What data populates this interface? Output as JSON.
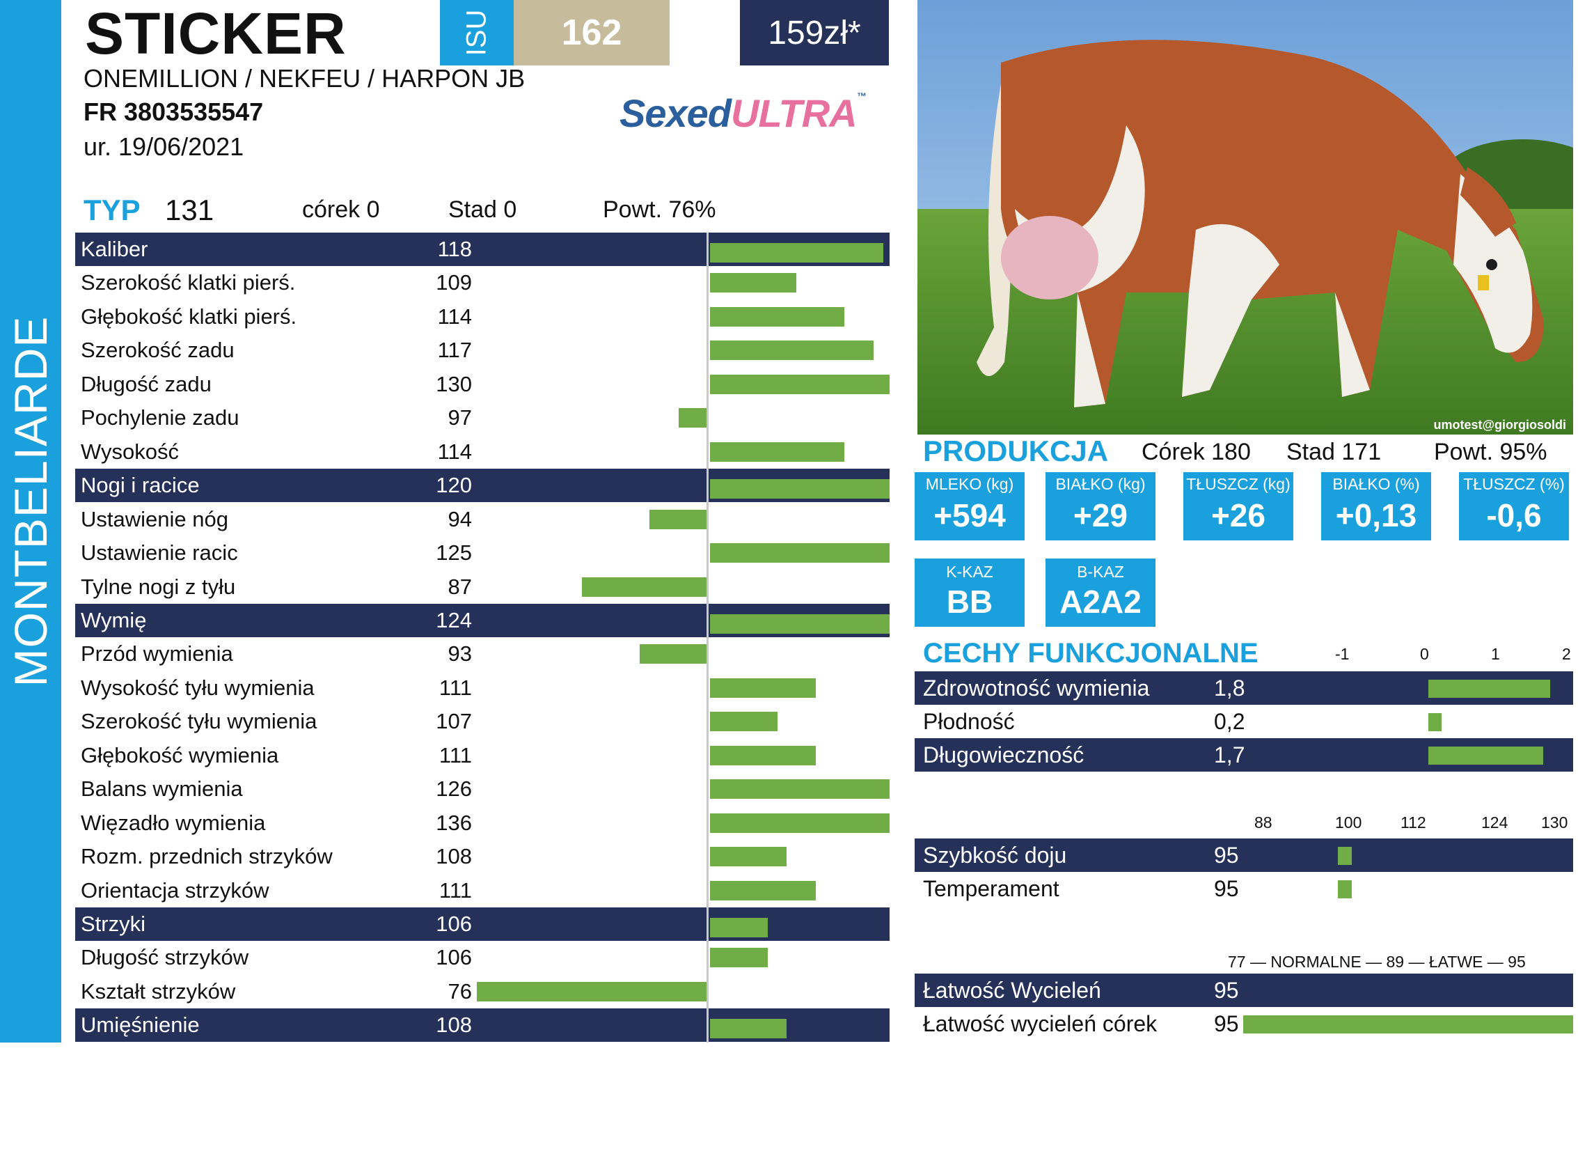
{
  "breed": "MONTBELIARDE",
  "header": {
    "name": "STICKER",
    "isu_label": "ISU",
    "isu_value": "162",
    "price": "159zł*",
    "pedigree": "ONEMILLION / NEKFEU / HARPON JB",
    "reg_number": "FR 3803535547",
    "birth_date": "ur. 19/06/2021",
    "brand_part1": "Sexed",
    "brand_part2": "ULTRA",
    "brand_tm": "™"
  },
  "type_summary": {
    "label": "TYP",
    "value": "131",
    "daughters": "córek 0",
    "herds": "Stad 0",
    "reliability": "Powt. 76%"
  },
  "type_traits": [
    {
      "label": "Kaliber",
      "value": 118,
      "group": true
    },
    {
      "label": "Szerokość klatki pierś.",
      "value": 109,
      "group": false
    },
    {
      "label": "Głębokość klatki pierś.",
      "value": 114,
      "group": false
    },
    {
      "label": "Szerokość zadu",
      "value": 117,
      "group": false
    },
    {
      "label": "Długość zadu",
      "value": 130,
      "group": false
    },
    {
      "label": "Pochylenie zadu",
      "value": 97,
      "group": false
    },
    {
      "label": "Wysokość",
      "value": 114,
      "group": false
    },
    {
      "label": "Nogi i racice",
      "value": 120,
      "group": true
    },
    {
      "label": "Ustawienie nóg",
      "value": 94,
      "group": false
    },
    {
      "label": "Ustawienie racic",
      "value": 125,
      "group": false
    },
    {
      "label": "Tylne nogi z tyłu",
      "value": 87,
      "group": false
    },
    {
      "label": "Wymię",
      "value": 124,
      "group": true
    },
    {
      "label": "Przód wymienia",
      "value": 93,
      "group": false
    },
    {
      "label": "Wysokość tyłu wymienia",
      "value": 111,
      "group": false
    },
    {
      "label": "Szerokość tyłu wymienia",
      "value": 107,
      "group": false
    },
    {
      "label": "Głębokość wymienia",
      "value": 111,
      "group": false
    },
    {
      "label": "Balans wymienia",
      "value": 126,
      "group": false
    },
    {
      "label": "Więzadło wymienia",
      "value": 136,
      "group": false
    },
    {
      "label": "Rozm. przednich strzyków",
      "value": 108,
      "group": false
    },
    {
      "label": "Orientacja strzyków",
      "value": 111,
      "group": false
    },
    {
      "label": "Strzyki",
      "value": 106,
      "group": true
    },
    {
      "label": "Długość strzyków",
      "value": 106,
      "group": false
    },
    {
      "label": "Kształt strzyków",
      "value": 76,
      "group": false
    },
    {
      "label": "Umięśnienie",
      "value": 108,
      "group": true
    }
  ],
  "photo": {
    "credit": "umotest@giorgiosoldi"
  },
  "production": {
    "title": "PRODUKCJA",
    "daughters": "Córek 180",
    "herds": "Stad 171",
    "reliability": "Powt. 95%",
    "values": [
      {
        "label": "MLEKO (kg)",
        "value": "+594"
      },
      {
        "label": "BIAŁKO (kg)",
        "value": "+29"
      },
      {
        "label": "TŁUSZCZ (kg)",
        "value": "+26"
      },
      {
        "label": "BIAŁKO (%)",
        "value": "+0,13"
      },
      {
        "label": "TŁUSZCZ (%)",
        "value": "-0,6"
      }
    ],
    "genes": [
      {
        "label": "K-KAZ",
        "value": "BB"
      },
      {
        "label": "B-KAZ",
        "value": "A2A2"
      }
    ]
  },
  "functional": {
    "title": "CECHY FUNKCJONALNE",
    "scale_labels": [
      "-1",
      "0",
      "1",
      "2"
    ],
    "traits": [
      {
        "label": "Zdrowotność wymienia",
        "value": "1,8",
        "num": 1.8,
        "group": true
      },
      {
        "label": "Płodność",
        "value": "0,2",
        "num": 0.2,
        "group": false
      },
      {
        "label": "Długowieczność",
        "value": "1,7",
        "num": 1.7,
        "group": true
      }
    ]
  },
  "milking": {
    "scale_labels": [
      "88",
      "100",
      "112",
      "124",
      "130"
    ],
    "traits": [
      {
        "label": "Szybkość doju",
        "value": "95",
        "group": true
      },
      {
        "label": "Temperament",
        "value": "95",
        "group": false
      }
    ]
  },
  "calving": {
    "scale_text": "77 — NORMALNE — 89 — ŁATWE — 95",
    "traits": [
      {
        "label": "Łatwość Wycieleń",
        "value": "95",
        "group": true
      },
      {
        "label": "Łatwość wycieleń córek",
        "value": "95",
        "group": false
      }
    ]
  },
  "colors": {
    "accent_blue": "#1aa0dc",
    "navy": "#263159",
    "bar_green": "#70ad47",
    "isu_tan": "#c6bb9b"
  }
}
